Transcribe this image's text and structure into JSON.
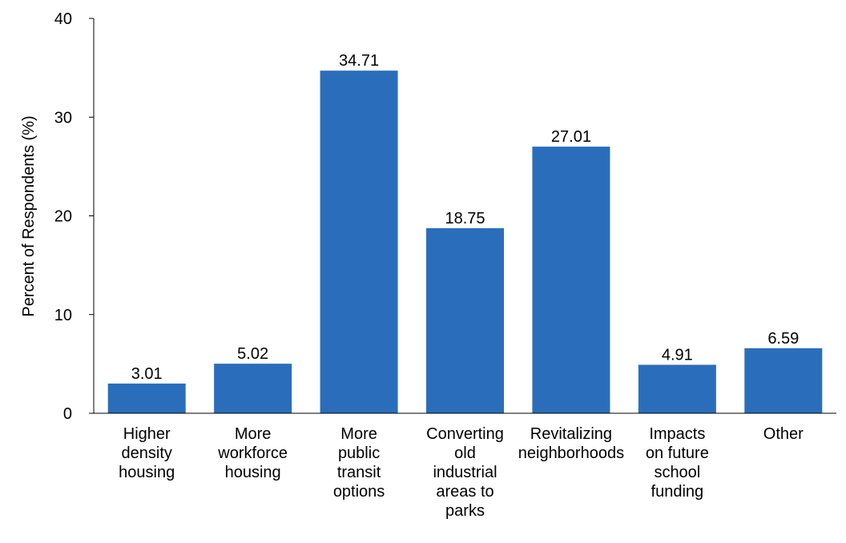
{
  "chart_data": {
    "type": "bar",
    "categories": [
      [
        "Higher",
        "density",
        "housing"
      ],
      [
        "More",
        "workforce",
        "housing"
      ],
      [
        "More",
        "public",
        "transit",
        "options"
      ],
      [
        "Converting",
        "old",
        "industrial",
        "areas to",
        "parks"
      ],
      [
        "Revitalizing",
        "neighborhoods"
      ],
      [
        "Impacts",
        "on future",
        "school",
        "funding"
      ],
      [
        "Other"
      ]
    ],
    "values": [
      3.01,
      5.02,
      34.71,
      18.75,
      27.01,
      4.91,
      6.59
    ],
    "data_labels": [
      "3.01",
      "5.02",
      "34.71",
      "18.75",
      "27.01",
      "4.91",
      "6.59"
    ],
    "ylabel": "Percent of Respondents (%)",
    "xlabel": "",
    "ylim": [
      0,
      40
    ],
    "yticks": [
      0,
      10,
      20,
      30,
      40
    ],
    "grid": false,
    "bar_color": "#2a6ebb"
  }
}
